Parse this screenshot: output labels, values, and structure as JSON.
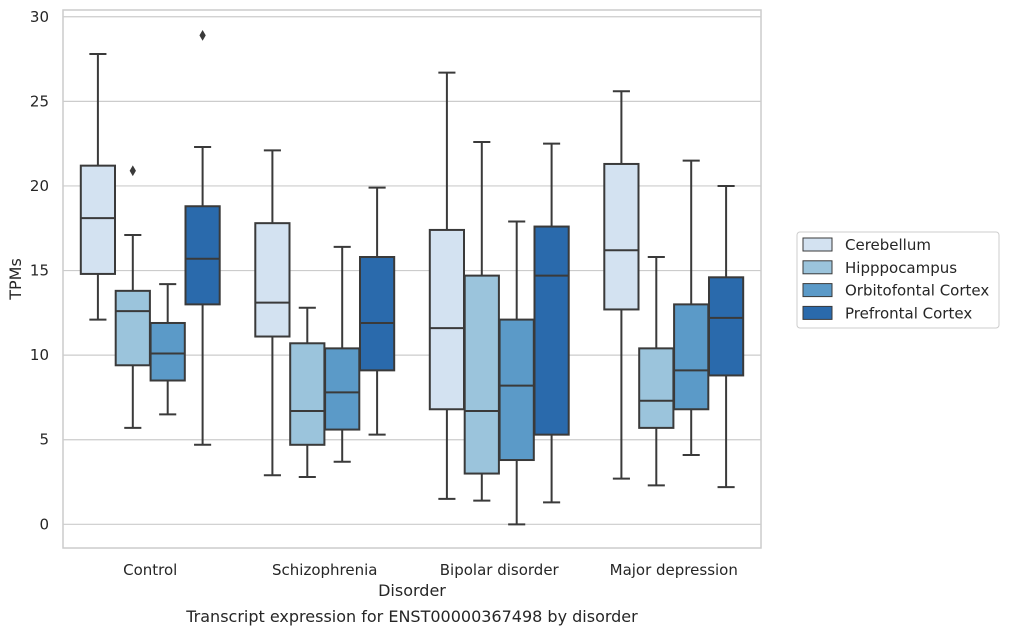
{
  "caption": "Transcript expression for ENST00000367498 by disorder",
  "chart_data": {
    "type": "box",
    "xlabel": "Disorder",
    "ylabel": "TPMs",
    "ylim": [
      -1.4,
      30.4
    ],
    "yticks": [
      0,
      5,
      10,
      15,
      20,
      25,
      30
    ],
    "grid": "horizontal",
    "legend_position": "right",
    "categories": [
      "Control",
      "Schizophrenia",
      "Bipolar disorder",
      "Major depression"
    ],
    "series": [
      {
        "name": "Cerebellum",
        "color": "#d3e2f1",
        "boxes": [
          {
            "whisker_low": 12.1,
            "q1": 14.8,
            "median": 18.1,
            "q3": 21.2,
            "whisker_high": 27.8,
            "outliers": []
          },
          {
            "whisker_low": 2.9,
            "q1": 11.1,
            "median": 13.1,
            "q3": 17.8,
            "whisker_high": 22.1,
            "outliers": []
          },
          {
            "whisker_low": 1.5,
            "q1": 6.8,
            "median": 11.6,
            "q3": 17.4,
            "whisker_high": 26.7,
            "outliers": []
          },
          {
            "whisker_low": 2.7,
            "q1": 12.7,
            "median": 16.2,
            "q3": 21.3,
            "whisker_high": 25.6,
            "outliers": []
          }
        ]
      },
      {
        "name": "Hipppocampus",
        "color": "#9bc4dc",
        "boxes": [
          {
            "whisker_low": 5.7,
            "q1": 9.4,
            "median": 12.6,
            "q3": 13.8,
            "whisker_high": 17.1,
            "outliers": [
              20.9
            ]
          },
          {
            "whisker_low": 2.8,
            "q1": 4.7,
            "median": 6.7,
            "q3": 10.7,
            "whisker_high": 12.8,
            "outliers": []
          },
          {
            "whisker_low": 1.4,
            "q1": 3.0,
            "median": 6.7,
            "q3": 14.7,
            "whisker_high": 22.6,
            "outliers": []
          },
          {
            "whisker_low": 2.3,
            "q1": 5.7,
            "median": 7.3,
            "q3": 10.4,
            "whisker_high": 15.8,
            "outliers": []
          }
        ]
      },
      {
        "name": "Orbitofontal Cortex",
        "color": "#5b9ac8",
        "boxes": [
          {
            "whisker_low": 6.5,
            "q1": 8.5,
            "median": 10.1,
            "q3": 11.9,
            "whisker_high": 14.2,
            "outliers": []
          },
          {
            "whisker_low": 3.7,
            "q1": 5.6,
            "median": 7.8,
            "q3": 10.4,
            "whisker_high": 16.4,
            "outliers": []
          },
          {
            "whisker_low": 0.0,
            "q1": 3.8,
            "median": 8.2,
            "q3": 12.1,
            "whisker_high": 17.9,
            "outliers": []
          },
          {
            "whisker_low": 4.1,
            "q1": 6.8,
            "median": 9.1,
            "q3": 13.0,
            "whisker_high": 21.5,
            "outliers": []
          }
        ]
      },
      {
        "name": "Prefrontal Cortex",
        "color": "#2a6aac",
        "boxes": [
          {
            "whisker_low": 4.7,
            "q1": 13.0,
            "median": 15.7,
            "q3": 18.8,
            "whisker_high": 22.3,
            "outliers": [
              28.9
            ]
          },
          {
            "whisker_low": 5.3,
            "q1": 9.1,
            "median": 11.9,
            "q3": 15.8,
            "whisker_high": 19.9,
            "outliers": []
          },
          {
            "whisker_low": 1.3,
            "q1": 5.3,
            "median": 14.7,
            "q3": 17.6,
            "whisker_high": 22.5,
            "outliers": []
          },
          {
            "whisker_low": 2.2,
            "q1": 8.8,
            "median": 12.2,
            "q3": 14.6,
            "whisker_high": 20.0,
            "outliers": []
          }
        ]
      }
    ]
  }
}
